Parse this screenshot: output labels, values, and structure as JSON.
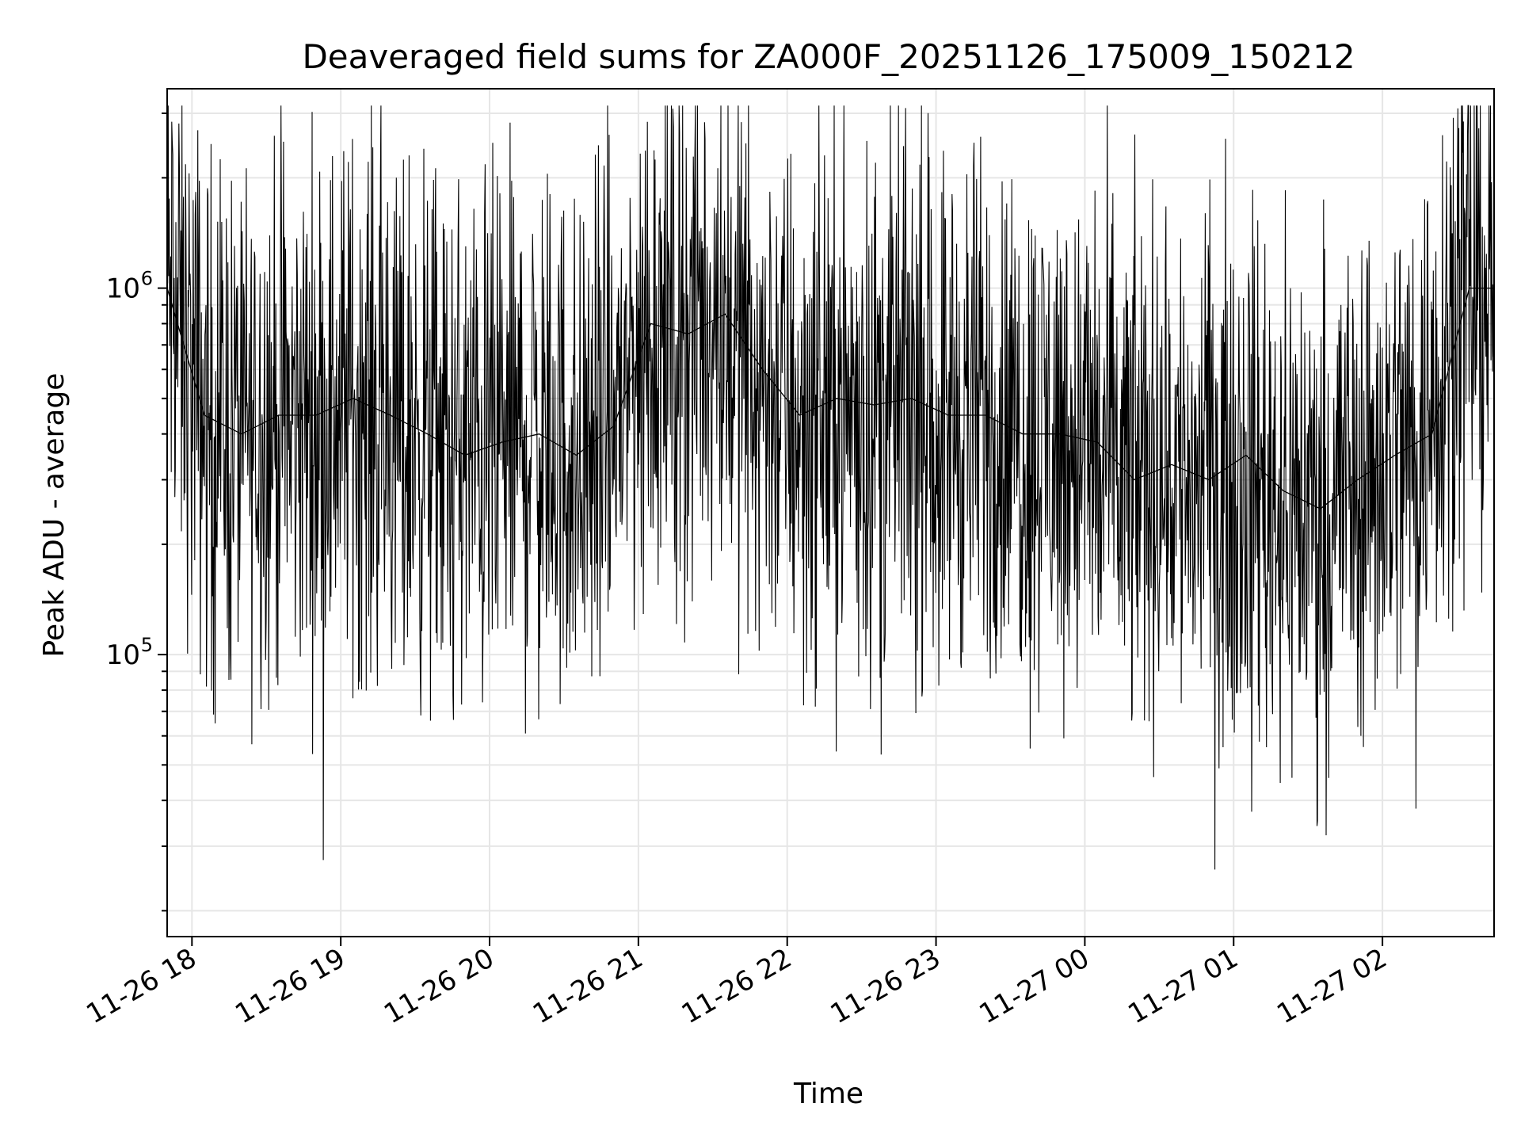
{
  "chart_data": {
    "type": "line",
    "title": "Deaveraged field sums for ZA000F_20251126_175009_150212",
    "xlabel": "Time",
    "ylabel": "Peak ADU - average",
    "y_scale": "log",
    "ylim": [
      17000,
      3500000
    ],
    "xlim": [
      "2025-11-26 17:50",
      "2025-11-27 02:45"
    ],
    "grid": true,
    "line_color": "#000000",
    "x_tick_labels": [
      "11-26 18",
      "11-26 19",
      "11-26 20",
      "11-26 21",
      "11-26 22",
      "11-26 23",
      "11-27 00",
      "11-27 01",
      "11-27 02"
    ],
    "x_tick_times": [
      "2025-11-26 18:00",
      "2025-11-26 19:00",
      "2025-11-26 20:00",
      "2025-11-26 21:00",
      "2025-11-26 22:00",
      "2025-11-26 23:00",
      "2025-11-27 00:00",
      "2025-11-27 01:00",
      "2025-11-27 02:00"
    ],
    "y_ticks": [
      {
        "base": "10",
        "exp": "5",
        "value": 100000
      },
      {
        "base": "10",
        "exp": "6",
        "value": 1000000
      }
    ],
    "series": [
      {
        "x": [
          "2025-11-26 17:50",
          "2025-11-26 18:05",
          "2025-11-26 18:20",
          "2025-11-26 18:35",
          "2025-11-26 18:50",
          "2025-11-26 19:05",
          "2025-11-26 19:20",
          "2025-11-26 19:35",
          "2025-11-26 19:50",
          "2025-11-26 20:05",
          "2025-11-26 20:20",
          "2025-11-26 20:35",
          "2025-11-26 20:50",
          "2025-11-26 21:05",
          "2025-11-26 21:20",
          "2025-11-26 21:35",
          "2025-11-26 21:50",
          "2025-11-26 22:05",
          "2025-11-26 22:20",
          "2025-11-26 22:35",
          "2025-11-26 22:50",
          "2025-11-26 23:05",
          "2025-11-26 23:20",
          "2025-11-26 23:35",
          "2025-11-26 23:50",
          "2025-11-27 00:05",
          "2025-11-27 00:20",
          "2025-11-27 00:35",
          "2025-11-27 00:50",
          "2025-11-27 01:05",
          "2025-11-27 01:20",
          "2025-11-27 01:35",
          "2025-11-27 01:50",
          "2025-11-27 02:05",
          "2025-11-27 02:20",
          "2025-11-27 02:35",
          "2025-11-27 02:45"
        ],
        "y": [
          1000000,
          450000,
          400000,
          450000,
          450000,
          500000,
          450000,
          400000,
          350000,
          380000,
          400000,
          350000,
          420000,
          800000,
          750000,
          850000,
          600000,
          450000,
          500000,
          480000,
          500000,
          450000,
          450000,
          400000,
          400000,
          380000,
          300000,
          330000,
          300000,
          350000,
          280000,
          250000,
          300000,
          350000,
          400000,
          1000000,
          1000000
        ]
      }
    ]
  }
}
